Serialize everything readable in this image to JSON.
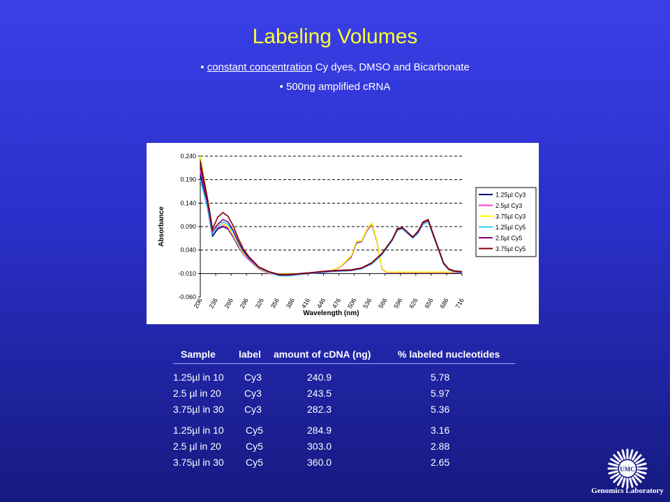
{
  "slide": {
    "title": "Labeling Volumes",
    "bullet1_prefix": "• ",
    "bullet1_underlined": "constant concentration",
    "bullet1_rest": " Cy dyes, DMSO and Bicarbonate",
    "bullet2": "• 500ng amplified cRNA"
  },
  "colors": {
    "title": "#ffff33",
    "background_top": "#3a3fe8",
    "background_bottom": "#161a80"
  },
  "chart_data": {
    "type": "line",
    "xlabel": "Wavelength (nm)",
    "ylabel": "Absorbance",
    "ylim": [
      -0.06,
      0.24
    ],
    "xlim": [
      206,
      716
    ],
    "y_ticks": [
      "0.240",
      "0.190",
      "0.140",
      "0.090",
      "0.040",
      "-0.010",
      "-0.060"
    ],
    "y_tick_values": [
      0.24,
      0.19,
      0.14,
      0.09,
      0.04,
      -0.01,
      -0.06
    ],
    "x_ticks": [
      "206",
      "236",
      "266",
      "296",
      "326",
      "356",
      "386",
      "416",
      "446",
      "476",
      "506",
      "536",
      "566",
      "596",
      "626",
      "656",
      "686",
      "716"
    ],
    "grid": "horizontal dashed",
    "legend_position": "right",
    "series": [
      {
        "name": "1.25µl Cy3",
        "color": "#000080",
        "x": [
          206,
          220,
          230,
          240,
          250,
          260,
          270,
          280,
          290,
          300,
          320,
          340,
          360,
          380,
          400,
          420,
          440,
          460,
          480,
          500,
          510,
          520,
          530,
          540,
          550,
          560,
          570,
          580,
          600,
          620,
          640,
          660,
          680,
          700,
          716
        ],
        "y": [
          0.2,
          0.13,
          0.07,
          0.085,
          0.09,
          0.085,
          0.068,
          0.048,
          0.03,
          0.02,
          0.0,
          -0.01,
          -0.012,
          -0.012,
          -0.012,
          -0.01,
          -0.008,
          -0.006,
          0.005,
          0.025,
          0.055,
          0.058,
          0.08,
          0.095,
          0.06,
          0.0,
          -0.008,
          -0.008,
          -0.008,
          -0.008,
          -0.008,
          -0.008,
          -0.008,
          -0.008,
          -0.008
        ]
      },
      {
        "name": "2.5µl Cy3",
        "color": "#ff33cc",
        "x": [
          206,
          220,
          230,
          240,
          250,
          260,
          270,
          280,
          290,
          300,
          320,
          340,
          360,
          380,
          400,
          420,
          440,
          460,
          480,
          500,
          510,
          520,
          530,
          540,
          550,
          560,
          570,
          580,
          600,
          620,
          640,
          660,
          680,
          700,
          716
        ],
        "y": [
          0.21,
          0.14,
          0.075,
          0.088,
          0.092,
          0.087,
          0.07,
          0.05,
          0.03,
          0.02,
          0.0,
          -0.01,
          -0.012,
          -0.012,
          -0.012,
          -0.01,
          -0.008,
          -0.006,
          0.005,
          0.026,
          0.056,
          0.059,
          0.081,
          0.096,
          0.061,
          0.0,
          -0.008,
          -0.008,
          -0.008,
          -0.008,
          -0.008,
          -0.008,
          -0.008,
          -0.008,
          -0.008
        ]
      },
      {
        "name": "3.75µl Cy3",
        "color": "#ffff00",
        "x": [
          206,
          220,
          230,
          240,
          250,
          260,
          270,
          280,
          290,
          300,
          320,
          340,
          360,
          380,
          400,
          420,
          440,
          460,
          480,
          500,
          510,
          520,
          530,
          540,
          550,
          560,
          570,
          580,
          600,
          620,
          640,
          660,
          680,
          700,
          716
        ],
        "y": [
          0.24,
          0.15,
          0.08,
          0.092,
          0.096,
          0.09,
          0.072,
          0.052,
          0.032,
          0.022,
          0.001,
          -0.009,
          -0.011,
          -0.011,
          -0.011,
          -0.009,
          -0.007,
          -0.005,
          0.006,
          0.028,
          0.058,
          0.06,
          0.083,
          0.098,
          0.062,
          0.001,
          -0.007,
          -0.007,
          -0.007,
          -0.007,
          -0.007,
          -0.007,
          -0.007,
          -0.007,
          -0.007
        ]
      },
      {
        "name": "1.25µl Cy5",
        "color": "#33ccff",
        "x": [
          206,
          220,
          230,
          240,
          250,
          260,
          270,
          280,
          290,
          300,
          320,
          340,
          360,
          380,
          400,
          420,
          440,
          460,
          480,
          500,
          520,
          540,
          560,
          580,
          590,
          600,
          610,
          620,
          630,
          640,
          650,
          660,
          670,
          680,
          690,
          700,
          716
        ],
        "y": [
          0.19,
          0.13,
          0.075,
          0.09,
          0.1,
          0.095,
          0.078,
          0.055,
          0.035,
          0.022,
          0.002,
          -0.008,
          -0.015,
          -0.015,
          -0.012,
          -0.01,
          -0.008,
          -0.006,
          -0.005,
          -0.004,
          0.0,
          0.01,
          0.03,
          0.06,
          0.082,
          0.085,
          0.075,
          0.065,
          0.075,
          0.095,
          0.1,
          0.07,
          0.04,
          0.01,
          -0.002,
          -0.006,
          -0.008
        ]
      },
      {
        "name": "2.5µl Cy5",
        "color": "#800080",
        "x": [
          206,
          220,
          230,
          240,
          250,
          260,
          270,
          280,
          290,
          300,
          320,
          340,
          360,
          380,
          400,
          420,
          440,
          460,
          480,
          500,
          520,
          540,
          560,
          580,
          590,
          600,
          610,
          620,
          630,
          640,
          650,
          660,
          670,
          680,
          690,
          700,
          716
        ],
        "y": [
          0.22,
          0.14,
          0.08,
          0.095,
          0.105,
          0.1,
          0.082,
          0.058,
          0.038,
          0.024,
          0.003,
          -0.007,
          -0.013,
          -0.013,
          -0.011,
          -0.009,
          -0.007,
          -0.005,
          -0.004,
          -0.003,
          0.001,
          0.012,
          0.032,
          0.062,
          0.084,
          0.087,
          0.077,
          0.067,
          0.078,
          0.098,
          0.103,
          0.072,
          0.042,
          0.012,
          -0.001,
          -0.005,
          -0.007
        ]
      },
      {
        "name": "3.75µl Cy5",
        "color": "#800000",
        "x": [
          206,
          220,
          230,
          240,
          250,
          260,
          270,
          280,
          290,
          300,
          320,
          340,
          360,
          380,
          400,
          420,
          440,
          460,
          480,
          500,
          520,
          540,
          560,
          580,
          590,
          600,
          610,
          620,
          630,
          640,
          650,
          660,
          670,
          680,
          690,
          700,
          716
        ],
        "y": [
          0.23,
          0.15,
          0.085,
          0.11,
          0.12,
          0.112,
          0.092,
          0.065,
          0.042,
          0.027,
          0.004,
          -0.006,
          -0.012,
          -0.012,
          -0.01,
          -0.008,
          -0.006,
          -0.004,
          -0.003,
          -0.002,
          0.002,
          0.013,
          0.033,
          0.063,
          0.086,
          0.088,
          0.078,
          0.068,
          0.08,
          0.1,
          0.105,
          0.074,
          0.044,
          0.013,
          0.0,
          -0.004,
          -0.006
        ]
      }
    ]
  },
  "table": {
    "headers": [
      "Sample",
      "label",
      "amount of cDNA (ng)",
      "% labeled nucleotides"
    ],
    "rows": [
      {
        "sample": "1.25µl in 10",
        "label": "Cy3",
        "amount": "240.9",
        "pct": "5.78"
      },
      {
        "sample": "2.5  µl in 20",
        "label": "Cy3",
        "amount": "243.5",
        "pct": "5.97"
      },
      {
        "sample": "3.75µl in 30",
        "label": "Cy3",
        "amount": "282.3",
        "pct": "5.36"
      },
      {
        "sample": "1.25µl in 10",
        "label": "Cy5",
        "amount": "284.9",
        "pct": "3.16"
      },
      {
        "sample": "2.5  µl in 20",
        "label": "Cy5",
        "amount": "303.0",
        "pct": "2.88"
      },
      {
        "sample": "3.75µl in 30",
        "label": "Cy5",
        "amount": "360.0",
        "pct": "2.65"
      }
    ]
  },
  "logo": {
    "mark_text": "UMC",
    "caption": "Genomics Laboratory"
  }
}
